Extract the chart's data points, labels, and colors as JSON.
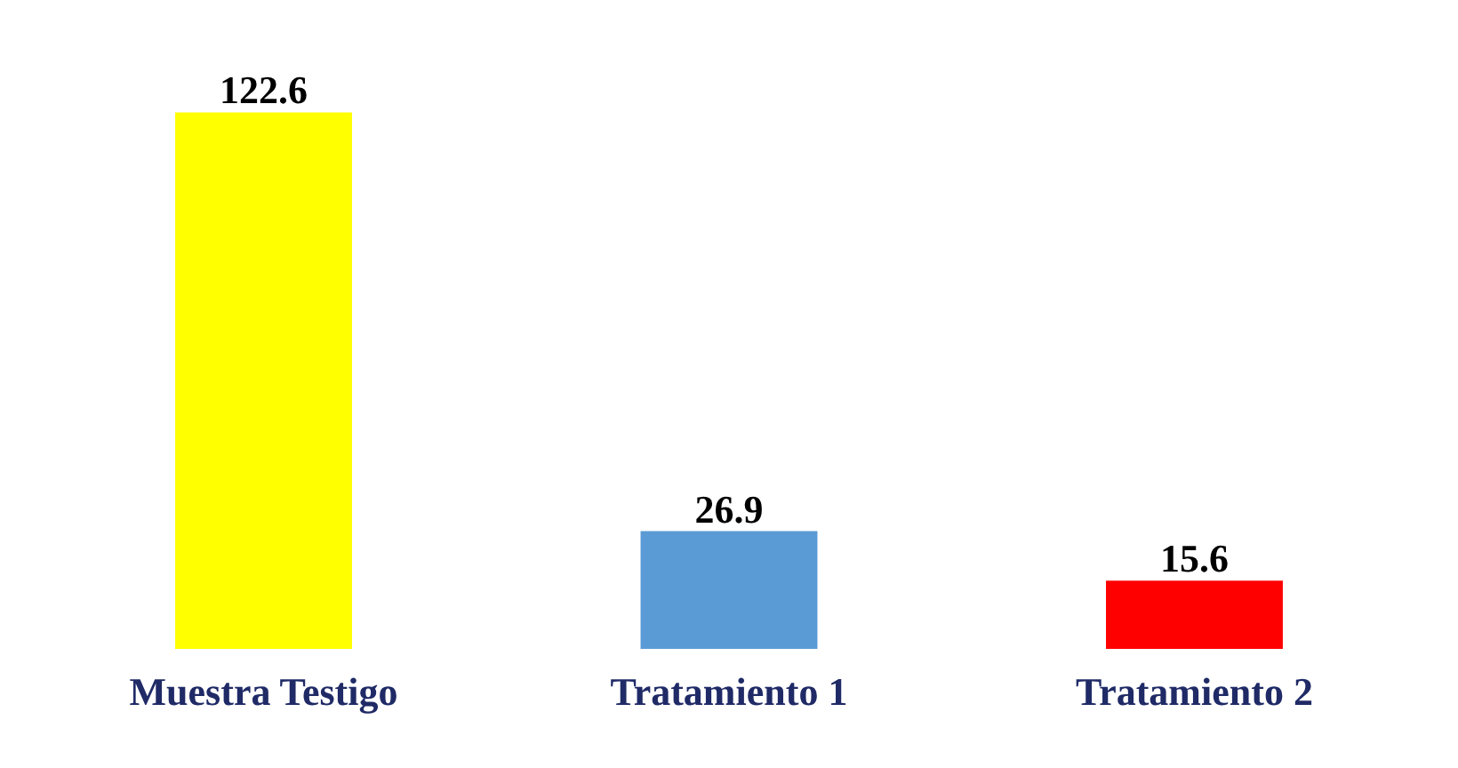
{
  "chart_data": {
    "type": "bar",
    "categories": [
      "Muestra Testigo",
      "Tratamiento 1",
      "Tratamiento 2"
    ],
    "values": [
      122.6,
      26.9,
      15.6
    ],
    "colors": [
      "#ffff00",
      "#5b9bd5",
      "#ff0000"
    ],
    "data_labels": true
  }
}
